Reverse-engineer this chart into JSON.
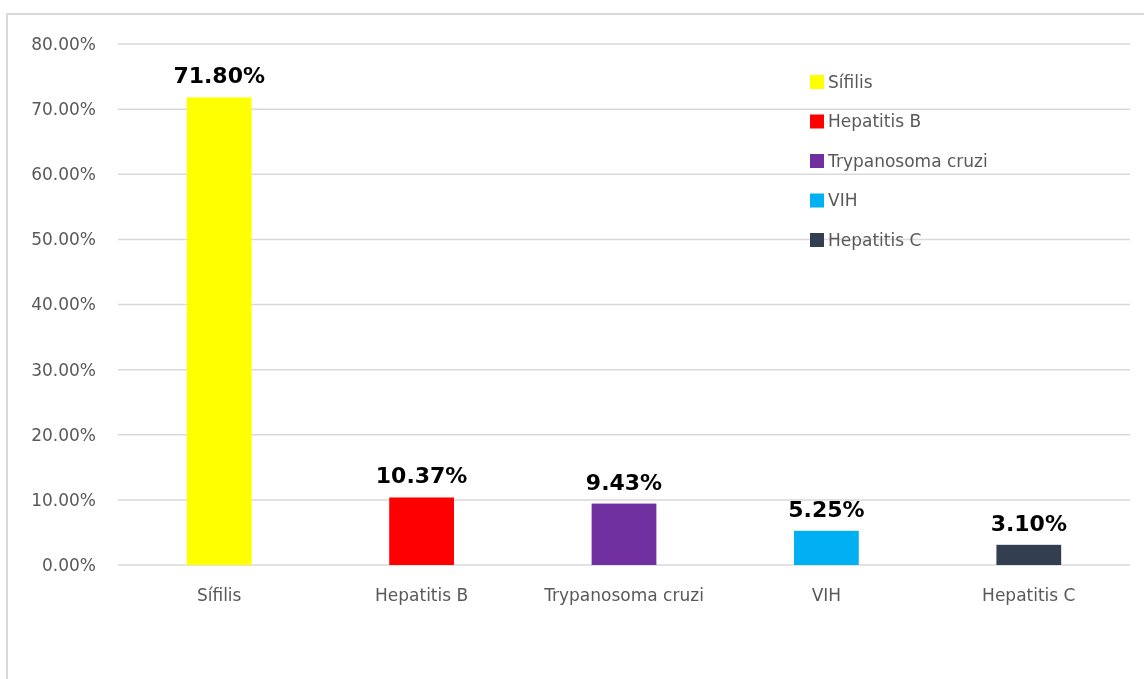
{
  "chart_data": {
    "type": "bar",
    "stacked": true,
    "categories": [
      "Sífilis",
      "Hepatitis B",
      "Trypanosoma cruzi",
      "VIH",
      "Hepatitis C"
    ],
    "series": [
      {
        "name": "Sífilis",
        "color": "#ffff00",
        "values": [
          71.8,
          null,
          null,
          null,
          null
        ],
        "value_labels": [
          "71.80%",
          null,
          null,
          null,
          null
        ]
      },
      {
        "name": "Hepatitis B",
        "color": "#ff0000",
        "values": [
          null,
          10.37,
          null,
          null,
          null
        ],
        "value_labels": [
          null,
          "10.37%",
          null,
          null,
          null
        ]
      },
      {
        "name": "Trypanosoma cruzi",
        "color": "#7030a0",
        "values": [
          null,
          null,
          9.43,
          null,
          null
        ],
        "value_labels": [
          null,
          null,
          "9.43%",
          null,
          null
        ]
      },
      {
        "name": "VIH",
        "color": "#00b0f0",
        "values": [
          null,
          null,
          null,
          5.25,
          null
        ],
        "value_labels": [
          null,
          null,
          null,
          "5.25%",
          null
        ]
      },
      {
        "name": "Hepatitis C",
        "color": "#333f50",
        "values": [
          null,
          null,
          null,
          null,
          3.1
        ],
        "value_labels": [
          null,
          null,
          null,
          null,
          "3.10%"
        ]
      }
    ],
    "ylim": [
      0,
      80
    ],
    "yticks": [
      {
        "value": 0,
        "label": "0.00%"
      },
      {
        "value": 10,
        "label": "10.00%"
      },
      {
        "value": 20,
        "label": "20.00%"
      },
      {
        "value": 30,
        "label": "30.00%"
      },
      {
        "value": 40,
        "label": "40.00%"
      },
      {
        "value": 50,
        "label": "50.00%"
      },
      {
        "value": 60,
        "label": "60.00%"
      },
      {
        "value": 70,
        "label": "70.00%"
      },
      {
        "value": 80,
        "label": "80.00%"
      }
    ],
    "grid": "y",
    "legend": "top right"
  }
}
